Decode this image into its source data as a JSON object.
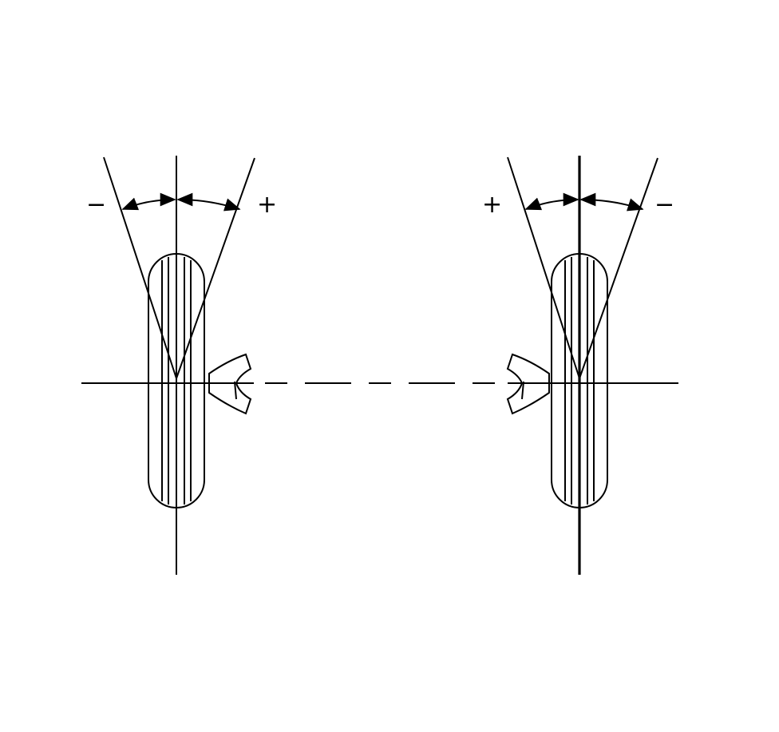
{
  "diagram": {
    "left_wheel": {
      "sign_left": "−",
      "sign_right": "+"
    },
    "right_wheel": {
      "sign_left": "+",
      "sign_right": "−"
    },
    "colors": {
      "line": "#000000",
      "background": "#ffffff"
    }
  }
}
